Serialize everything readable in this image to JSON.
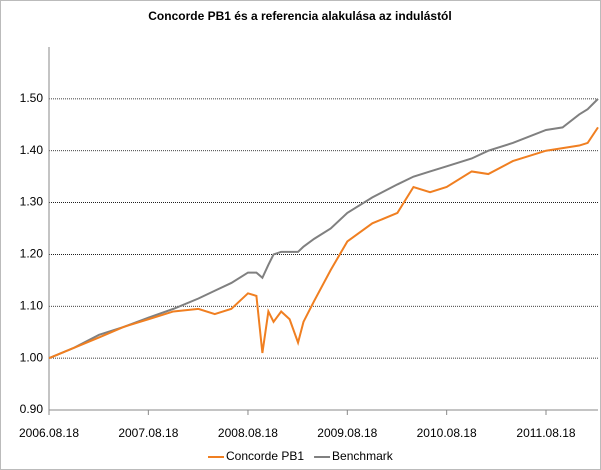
{
  "chart_data": {
    "type": "line",
    "title": "Concorde PB1 és a referencia alakulása az indulástól",
    "x": [
      "2006.08.18",
      "2006.11.18",
      "2007.02.18",
      "2007.05.18",
      "2007.08.18",
      "2007.11.18",
      "2008.02.18",
      "2008.04.18",
      "2008.06.18",
      "2008.08.18",
      "2008.09.18",
      "2008.10.10",
      "2008.11.01",
      "2008.11.20",
      "2008.12.18",
      "2009.01.18",
      "2009.02.18",
      "2009.03.10",
      "2009.04.18",
      "2009.06.18",
      "2009.08.18",
      "2009.11.18",
      "2010.02.18",
      "2010.04.18",
      "2010.06.18",
      "2010.08.18",
      "2010.11.18",
      "2011.01.18",
      "2011.04.18",
      "2011.08.18",
      "2011.10.18",
      "2011.12.18",
      "2012.01.18",
      "2012.02.25"
    ],
    "series": [
      {
        "name": "Concorde PB1",
        "color": "#f07f21",
        "values": [
          1.0,
          1.02,
          1.04,
          1.06,
          1.075,
          1.09,
          1.095,
          1.085,
          1.095,
          1.125,
          1.12,
          1.01,
          1.09,
          1.07,
          1.09,
          1.075,
          1.03,
          1.07,
          1.11,
          1.17,
          1.225,
          1.26,
          1.28,
          1.33,
          1.32,
          1.33,
          1.36,
          1.355,
          1.38,
          1.4,
          1.405,
          1.41,
          1.415,
          1.445
        ]
      },
      {
        "name": "Benchmark",
        "color": "#808080",
        "values": [
          1.0,
          1.02,
          1.045,
          1.06,
          1.078,
          1.095,
          1.115,
          1.13,
          1.145,
          1.165,
          1.165,
          1.155,
          1.18,
          1.2,
          1.205,
          1.205,
          1.205,
          1.215,
          1.23,
          1.25,
          1.28,
          1.31,
          1.335,
          1.35,
          1.36,
          1.37,
          1.385,
          1.4,
          1.415,
          1.44,
          1.445,
          1.47,
          1.48,
          1.5
        ]
      }
    ],
    "xlim": [
      "2006.08.18",
      "2012.02.25"
    ],
    "xticks": [
      "2006.08.18",
      "2007.08.18",
      "2008.08.18",
      "2009.08.18",
      "2010.08.18",
      "2011.08.18"
    ],
    "ylim": [
      0.9,
      1.6
    ],
    "yticks": [
      {
        "value": 0.9,
        "label": "0.90"
      },
      {
        "value": 1,
        "label": "1.00"
      },
      {
        "value": 1.1,
        "label": "1.10"
      },
      {
        "value": 1.2,
        "label": "1.20"
      },
      {
        "value": 1.3,
        "label": "1.30"
      },
      {
        "value": 1.4,
        "label": "1.40"
      },
      {
        "value": 1.5,
        "label": "1.50"
      }
    ],
    "grid": true,
    "legend": "bottom"
  }
}
